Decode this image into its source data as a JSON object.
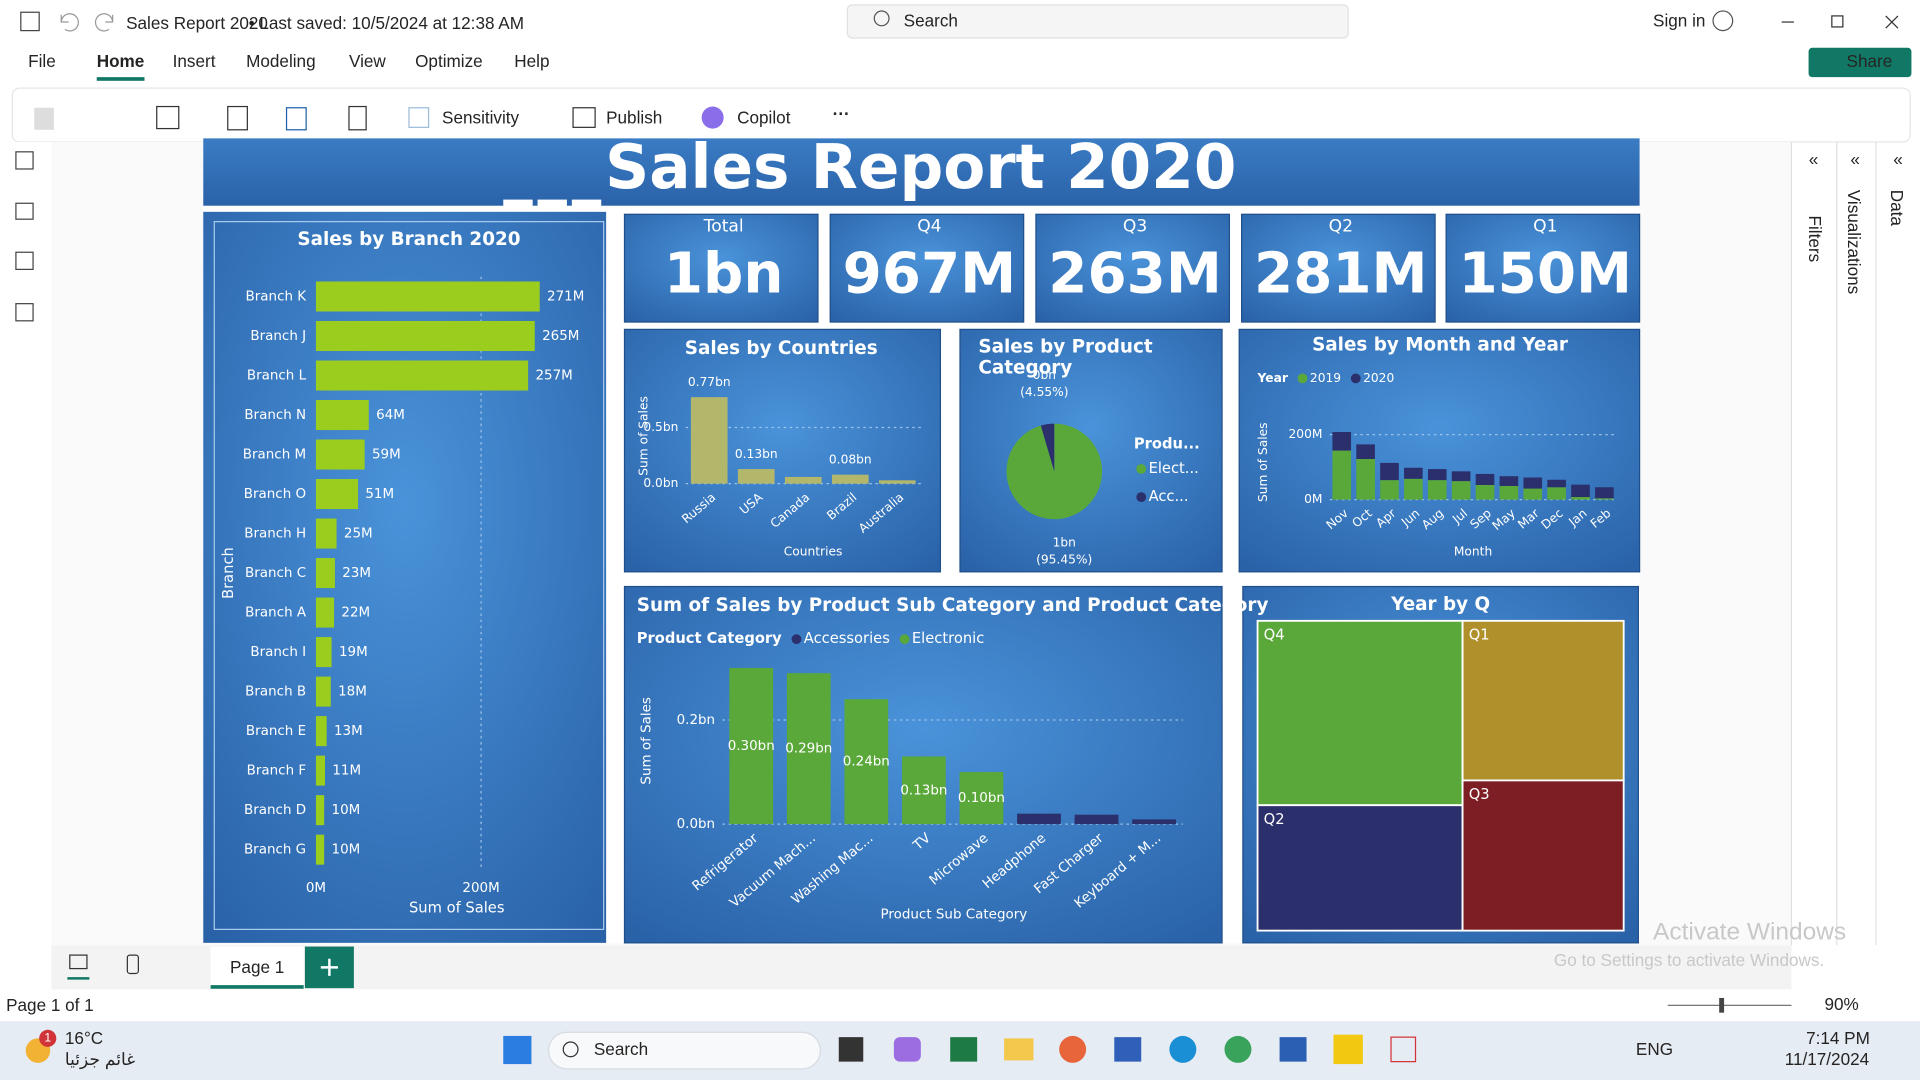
{
  "window": {
    "title": "Sales Report 2020",
    "saved": "• Last saved: 10/5/2024 at 12:38 AM",
    "search": "Search",
    "sign_in": "Sign in"
  },
  "menu": [
    "File",
    "Home",
    "Insert",
    "Modeling",
    "View",
    "Optimize",
    "Help"
  ],
  "share": "Share",
  "ribbon": {
    "sensitivity": "Sensitivity",
    "publish": "Publish",
    "copilot": "Copilot"
  },
  "report": {
    "title": "Sales Report 2020",
    "cards": [
      {
        "label": "Total",
        "value": "1bn"
      },
      {
        "label": "Q4",
        "value": "967M"
      },
      {
        "label": "Q3",
        "value": "263M"
      },
      {
        "label": "Q2",
        "value": "281M"
      },
      {
        "label": "Q1",
        "value": "150M"
      }
    ]
  },
  "chart_data": [
    {
      "type": "hbar",
      "title": "Sales by Branch 2020",
      "categories": [
        "Branch K",
        "Branch J",
        "Branch L",
        "Branch N",
        "Branch M",
        "Branch O",
        "Branch H",
        "Branch C",
        "Branch A",
        "Branch I",
        "Branch B",
        "Branch E",
        "Branch F",
        "Branch D",
        "Branch G"
      ],
      "values": [
        271,
        265,
        257,
        64,
        59,
        51,
        25,
        23,
        22,
        19,
        18,
        13,
        11,
        10,
        10
      ],
      "value_labels": [
        "271M",
        "265M",
        "257M",
        "64M",
        "59M",
        "51M",
        "25M",
        "23M",
        "22M",
        "19M",
        "18M",
        "13M",
        "11M",
        "10M",
        "10M"
      ],
      "color": "#9acd1e",
      "xlim": [
        0,
        344
      ],
      "xticks": [
        {
          "value": 0,
          "label": "0M"
        },
        {
          "value": 200,
          "label": "200M"
        }
      ],
      "xlabel": "Sum of Sales",
      "ylabel": "Branch",
      "grid": true
    },
    {
      "type": "bar",
      "title": "Sales by Countries",
      "categories": [
        "Russia",
        "USA",
        "Canada",
        "Brazil",
        "Australia"
      ],
      "values": [
        0.77,
        0.13,
        0.06,
        0.08,
        0.03
      ],
      "value_labels": [
        "0.77bn",
        "0.13bn",
        null,
        "0.08bn",
        null
      ],
      "color": "#b3b76c",
      "ylim": [
        0,
        0.85
      ],
      "yticks": [
        {
          "value": 0,
          "label": "0.0bn"
        },
        {
          "value": 0.5,
          "label": "0.5bn"
        }
      ],
      "xlabel": "Countries",
      "ylabel": "Sum of Sales",
      "grid": true
    },
    {
      "type": "pie",
      "title": "Sales by Product Category",
      "legend_title": "Produ...",
      "categories": [
        "Elect...",
        "Acc..."
      ],
      "values": [
        95.45,
        4.55
      ],
      "value_labels": [
        "(95.45%)",
        "(4.55%)"
      ],
      "amount_labels": [
        "1bn",
        "0bn"
      ],
      "colors": [
        "#5aa83a",
        "#2b2f6b"
      ]
    },
    {
      "type": "stacked_bar",
      "title": "Sales by Month and Year",
      "legend_title": "Year",
      "categories": [
        "Nov",
        "Oct",
        "Apr",
        "Jun",
        "Aug",
        "Jul",
        "Sep",
        "May",
        "Mar",
        "Dec",
        "Jan",
        "Feb"
      ],
      "series": [
        {
          "name": "2019",
          "color": "#5aa83a",
          "values": [
            151,
            125,
            60,
            64,
            60,
            57,
            45,
            42,
            34,
            38,
            8,
            4
          ]
        },
        {
          "name": "2020",
          "color": "#2b2f6b",
          "values": [
            57,
            45,
            53,
            34,
            34,
            30,
            34,
            30,
            34,
            23,
            38,
            34
          ]
        }
      ],
      "ylim": [
        0,
        230
      ],
      "yticks": [
        {
          "value": 0,
          "label": "0M"
        },
        {
          "value": 200,
          "label": "200M"
        }
      ],
      "xlabel": "Month",
      "ylabel": "Sum of Sales",
      "grid": true
    },
    {
      "type": "stacked_bar",
      "title": "Sum of Sales by Product Sub Category and Product Category",
      "legend_title": "Product Category",
      "categories": [
        "Refrigerator",
        "Vacuum Mach...",
        "Washing Mac...",
        "TV",
        "Microwave",
        "Headphone",
        "Fast Charger",
        "Keyboard + M..."
      ],
      "series": [
        {
          "name": "Accessories",
          "color": "#2b2f6b",
          "values": [
            null,
            null,
            null,
            null,
            null,
            0.02,
            0.018,
            0.009
          ]
        },
        {
          "name": "Electronic",
          "color": "#5aa83a",
          "values": [
            0.3,
            0.29,
            0.24,
            0.13,
            0.1,
            null,
            null,
            null
          ],
          "value_labels": [
            "0.30bn",
            "0.29bn",
            "0.24bn",
            "0.13bn",
            "0.10bn",
            null,
            null,
            null
          ]
        }
      ],
      "ylim": [
        0,
        0.32
      ],
      "yticks": [
        {
          "value": 0,
          "label": "0.0bn"
        },
        {
          "value": 0.2,
          "label": "0.2bn"
        }
      ],
      "xlabel": "Product Sub Category",
      "ylabel": "Sum of Sales",
      "grid": true
    },
    {
      "type": "treemap",
      "title": "Year by Q",
      "categories": [
        "Q4",
        "Q2",
        "Q1",
        "Q3"
      ],
      "values": [
        25,
        17,
        17,
        16
      ],
      "colors": [
        "#5aa83a",
        "#2b2f6b",
        "#b0902a",
        "#7d1d24"
      ]
    }
  ],
  "panes": [
    "Filters",
    "Visualizations",
    "Data"
  ],
  "page_tab": "Page 1",
  "status": "Page 1 of 1",
  "zoom": "90%",
  "watermark": {
    "title": "Activate Windows",
    "text": "Go to Settings to activate Windows."
  },
  "taskbar": {
    "weather": "16°C",
    "condition": "غائم جزئيا",
    "badge": "1",
    "search": "Search",
    "language": "ENG",
    "time": "7:14 PM",
    "date": "11/17/2024"
  }
}
